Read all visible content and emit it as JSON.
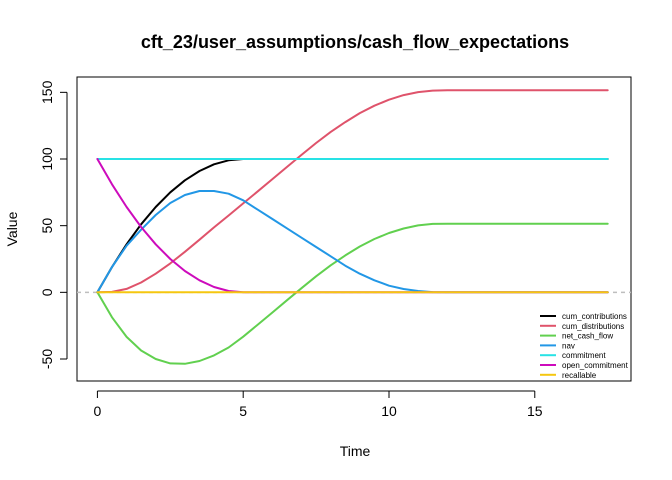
{
  "chart_data": {
    "type": "line",
    "title": "cft_23/user_assumptions/cash_flow_expectations",
    "xlabel": "Time",
    "ylabel": "Value",
    "xlim": [
      -0.7,
      18.3
    ],
    "ylim": [
      -66.5,
      161.5
    ],
    "xticks": [
      0,
      5,
      10,
      15
    ],
    "yticks": [
      -50,
      0,
      50,
      100,
      150
    ],
    "x_tick_labels": [
      "0",
      "5",
      "10",
      "15"
    ],
    "y_tick_labels": [
      "-50",
      "0",
      "50",
      "100",
      "150"
    ],
    "grid": false,
    "reference_line": {
      "y": 0,
      "style": "dashed",
      "color": "#BEBEBE"
    },
    "legend_position": "bottom-right",
    "series": [
      {
        "name": "cum_contributions",
        "color": "#000000",
        "x": [
          0,
          0.5,
          1,
          1.5,
          2,
          2.5,
          3,
          3.5,
          4,
          4.5,
          5,
          5.5,
          6,
          6.5,
          7,
          7.5,
          8,
          8.5,
          9,
          9.5,
          10,
          10.5,
          11,
          11.5,
          12,
          12.5,
          13,
          13.5,
          14,
          14.5,
          15,
          15.5,
          16,
          16.5,
          17,
          17.5
        ],
        "y": [
          0,
          19,
          36,
          51,
          64,
          75,
          84,
          91,
          96,
          99,
          100,
          100,
          100,
          100,
          100,
          100,
          100,
          100,
          100,
          100,
          100,
          100,
          100,
          100,
          100,
          100,
          100,
          100,
          100,
          100,
          100,
          100,
          100,
          100,
          100,
          100
        ]
      },
      {
        "name": "cum_distributions",
        "color": "#DF536B",
        "x": [
          0,
          0.5,
          1,
          1.5,
          2,
          2.5,
          3,
          3.5,
          4,
          4.5,
          5,
          5.5,
          6,
          6.5,
          7,
          7.5,
          8,
          8.5,
          9,
          9.5,
          10,
          10.5,
          11,
          11.5,
          12,
          12.5,
          13,
          13.5,
          14,
          14.5,
          15,
          15.5,
          16,
          16.5,
          17,
          17.5
        ],
        "y": [
          0,
          0.3,
          2.6,
          7.4,
          14,
          21.7,
          30.4,
          39.5,
          48.7,
          57.6,
          66.7,
          75.8,
          84.9,
          94,
          103.1,
          112,
          120.3,
          127.7,
          134.4,
          140,
          144.5,
          147.9,
          150.2,
          151.3,
          151.5,
          151.5,
          151.5,
          151.5,
          151.5,
          151.5,
          151.5,
          151.5,
          151.5,
          151.5,
          151.5,
          151.5
        ]
      },
      {
        "name": "net_cash_flow",
        "color": "#61D04F",
        "x": [
          0,
          0.5,
          1,
          1.5,
          2,
          2.5,
          3,
          3.5,
          4,
          4.5,
          5,
          5.5,
          6,
          6.5,
          7,
          7.5,
          8,
          8.5,
          9,
          9.5,
          10,
          10.5,
          11,
          11.5,
          12,
          12.5,
          13,
          13.5,
          14,
          14.5,
          15,
          15.5,
          16,
          16.5,
          17,
          17.5
        ],
        "y": [
          0,
          -18.7,
          -33.4,
          -43.6,
          -50,
          -53.3,
          -53.6,
          -51.5,
          -47.3,
          -41.4,
          -33.3,
          -24.2,
          -15.1,
          -6,
          3.1,
          12,
          20.3,
          27.7,
          34.4,
          40,
          44.5,
          47.9,
          50.2,
          51.3,
          51.5,
          51.5,
          51.5,
          51.5,
          51.5,
          51.5,
          51.5,
          51.5,
          51.5,
          51.5,
          51.5,
          51.5
        ]
      },
      {
        "name": "nav",
        "color": "#2297E6",
        "x": [
          0,
          0.5,
          1,
          1.5,
          2,
          2.5,
          3,
          3.5,
          4,
          4.5,
          5,
          5.5,
          6,
          6.5,
          7,
          7.5,
          8,
          8.5,
          9,
          9.5,
          10,
          10.5,
          11,
          11.5,
          12,
          12.5,
          13,
          13.5,
          14,
          14.5,
          15,
          15.5,
          16,
          16.5,
          17,
          17.5
        ],
        "y": [
          0,
          19,
          35,
          47,
          58,
          67,
          73,
          76,
          76,
          74,
          69,
          62,
          55,
          48,
          41,
          34,
          27,
          20,
          14,
          9,
          5,
          2.5,
          1,
          0.2,
          0,
          0,
          0,
          0,
          0,
          0,
          0,
          0,
          0,
          0,
          0,
          0
        ]
      },
      {
        "name": "commitment",
        "color": "#28E2E5",
        "x": [
          0,
          17.5
        ],
        "y": [
          100,
          100
        ]
      },
      {
        "name": "open_commitment",
        "color": "#CD0BBC",
        "x": [
          0,
          0.5,
          1,
          1.5,
          2,
          2.5,
          3,
          3.5,
          4,
          4.5,
          5,
          5.5,
          6,
          6.5,
          7,
          7.5,
          8,
          8.5,
          9,
          9.5,
          10,
          10.5,
          11,
          11.5,
          12,
          12.5,
          13,
          13.5,
          14,
          14.5,
          15,
          15.5,
          16,
          16.5,
          17,
          17.5
        ],
        "y": [
          100,
          81,
          64,
          49,
          36,
          25,
          16,
          9,
          4,
          1,
          0,
          0,
          0,
          0,
          0,
          0,
          0,
          0,
          0,
          0,
          0,
          0,
          0,
          0,
          0,
          0,
          0,
          0,
          0,
          0,
          0,
          0,
          0,
          0,
          0,
          0
        ]
      },
      {
        "name": "recallable",
        "color": "#F5C710",
        "x": [
          0,
          17.5
        ],
        "y": [
          0,
          0
        ]
      }
    ]
  }
}
